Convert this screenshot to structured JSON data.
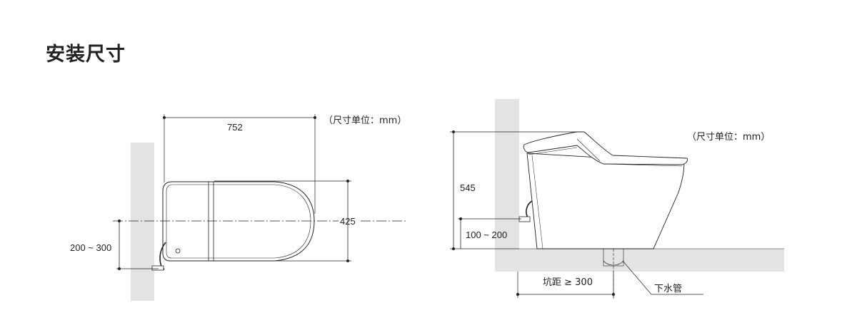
{
  "title": "安装尺寸",
  "top_view": {
    "unit_note": "（尺寸单位：mm）",
    "length": "752",
    "width": "425",
    "supply_offset": "200 ~ 300"
  },
  "side_view": {
    "unit_note": "（尺寸单位：mm）",
    "height": "545",
    "supply_height": "100 ~ 200",
    "rough_in": "坑距 ≥ 300",
    "drain_label": "下水管"
  },
  "colors": {
    "wall": "#e3e3e3",
    "line": "#222222"
  }
}
